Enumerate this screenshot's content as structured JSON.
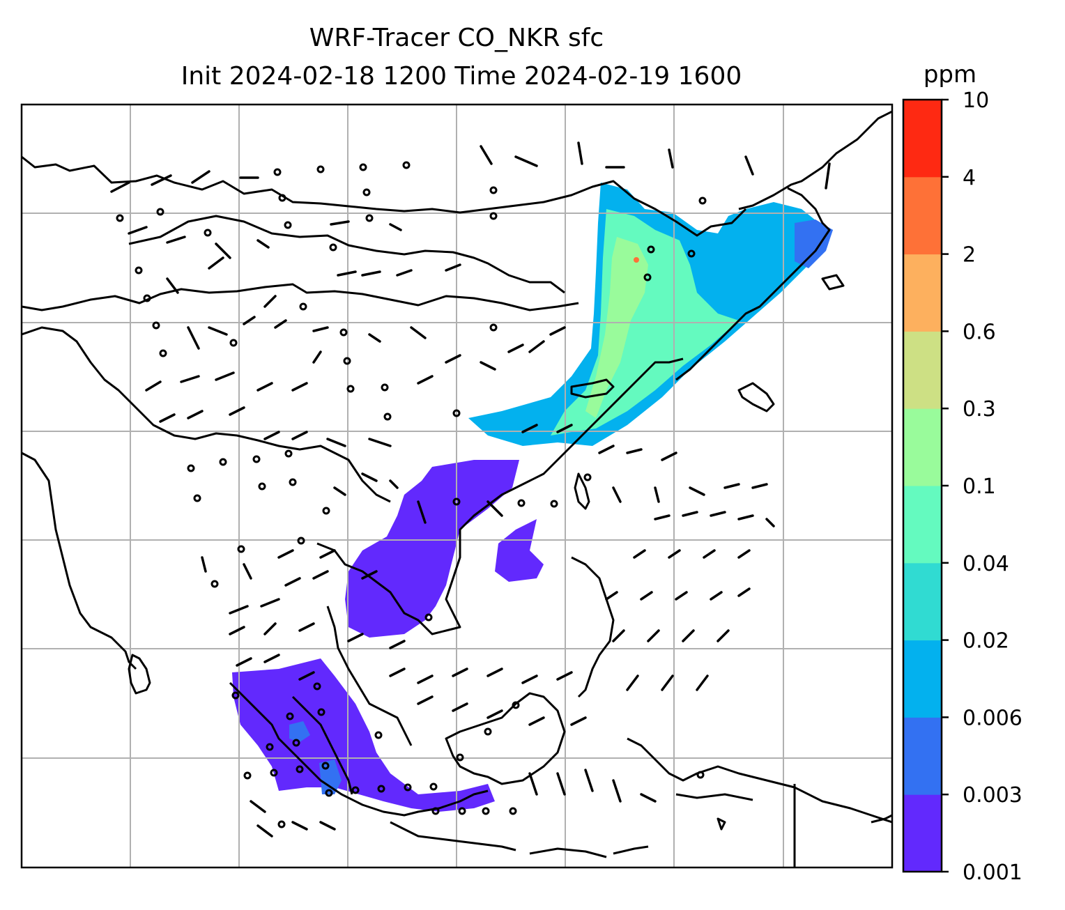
{
  "title": {
    "line1": "WRF-Tracer CO_NKR sfc",
    "line2": "Init 2024-02-18 1200 Time 2024-02-19 1600"
  },
  "colorbar": {
    "unit": "ppm",
    "levels": [
      "0.001",
      "0.003",
      "0.006",
      "0.02",
      "0.04",
      "0.1",
      "0.3",
      "0.6",
      "2",
      "4",
      "10"
    ],
    "colors": [
      "#6229fd",
      "#3371f2",
      "#03b1ee",
      "#30dbd2",
      "#64fabf",
      "#99fb9b",
      "#cde084",
      "#fdb05e",
      "#fe7137",
      "#fe2912"
    ]
  },
  "map": {
    "gridlines": "on",
    "overlay": "wind barbs",
    "grid_color": "#b0b0b0"
  }
}
